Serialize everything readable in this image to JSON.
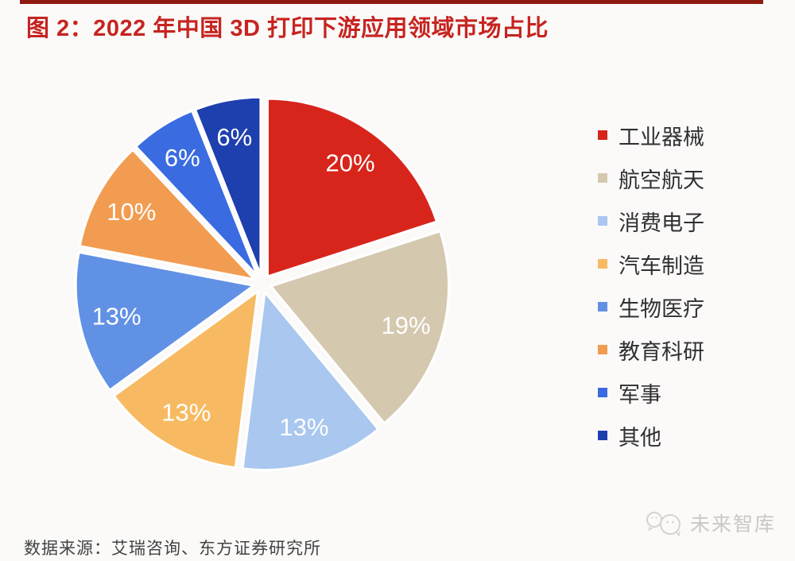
{
  "figure": {
    "title": "图 2：2022 年中国 3D 打印下游应用领域市场占比"
  },
  "chart_data": {
    "type": "pie",
    "title": "2022 年中国 3D 打印下游应用领域市场占比",
    "unit": "%",
    "start_angle_deg": 0,
    "direction": "clockwise",
    "legend_position": "right",
    "slice_labels_shown": true,
    "segments": [
      {
        "label": "工业器械",
        "value": 20,
        "color": "#d8251c"
      },
      {
        "label": "航空航天",
        "value": 19,
        "color": "#d4c8af"
      },
      {
        "label": "消费电子",
        "value": 13,
        "color": "#a9c7ef"
      },
      {
        "label": "汽车制造",
        "value": 13,
        "color": "#f7ba62"
      },
      {
        "label": "生物医疗",
        "value": 13,
        "color": "#6191e4"
      },
      {
        "label": "教育科研",
        "value": 10,
        "color": "#f29c51"
      },
      {
        "label": "军事",
        "value": 6,
        "color": "#3a6be0"
      },
      {
        "label": "其他",
        "value": 6,
        "color": "#1e3fae"
      }
    ]
  },
  "colors": {
    "title_red": "#c62420",
    "top_bar_dark_red": "#8e1a10",
    "background": "#fbfaf9",
    "legend_text": "#303034",
    "footer_text": "#434343",
    "bottom_line_gray": "#c4c8cb",
    "watermark_gray": "#c9c8c3",
    "slice_label_white": "#ffffff"
  },
  "footer": {
    "source": "数据来源：艾瑞咨询、东方证券研究所"
  },
  "watermark": {
    "text": "未来智库",
    "icon": "chat-faces-logo"
  }
}
